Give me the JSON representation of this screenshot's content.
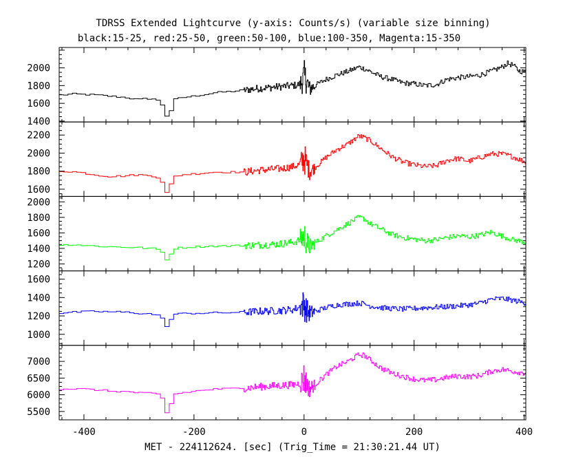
{
  "title": "TDRSS Extended Lightcurve (y-axis: Counts/s) (variable size binning)",
  "subtitle": "black:15-25, red:25-50, green:50-100, blue:100-350, Magenta:15-350",
  "xlabel": "MET - 224112624. [sec] (Trig_Time = 21:30:21.44 UT)",
  "chart_data": {
    "type": "line",
    "xlim": [
      -445,
      403
    ],
    "xticks": [
      -400,
      -200,
      0,
      200,
      400
    ],
    "trigger_x": 0,
    "series": [
      {
        "name": "black:15-25",
        "color": "#000000",
        "ylim": [
          1390,
          2230
        ],
        "yticks": [
          1400,
          1600,
          1800,
          2000
        ],
        "x": [
          -445,
          -420,
          -400,
          -380,
          -350,
          -320,
          -300,
          -290,
          -275,
          -260,
          -255,
          -250,
          -247,
          -243,
          -240,
          -235,
          -220,
          -200,
          -180,
          -160,
          -140,
          -120,
          -105,
          -95,
          -80,
          -60,
          -40,
          -20,
          -10,
          -5,
          0,
          5,
          10,
          20,
          40,
          60,
          80,
          100,
          110,
          120,
          140,
          160,
          180,
          200,
          220,
          240,
          260,
          280,
          300,
          320,
          340,
          360,
          370,
          380,
          390,
          403
        ],
        "values": [
          1690,
          1705,
          1700,
          1695,
          1680,
          1665,
          1640,
          1650,
          1655,
          1620,
          1560,
          1480,
          1420,
          1440,
          1560,
          1640,
          1665,
          1680,
          1700,
          1720,
          1730,
          1740,
          1750,
          1760,
          1770,
          1780,
          1790,
          1800,
          1810,
          1830,
          1900,
          1850,
          1760,
          1800,
          1870,
          1920,
          1960,
          2010,
          1990,
          1960,
          1900,
          1870,
          1830,
          1820,
          1800,
          1810,
          1870,
          1890,
          1900,
          1920,
          1960,
          2010,
          2050,
          2030,
          1970,
          1950
        ]
      },
      {
        "name": "red:25-50",
        "color": "#ff0000",
        "ylim": [
          1520,
          2345
        ],
        "yticks": [
          1600,
          1800,
          2000,
          2200
        ],
        "x": [
          -445,
          -420,
          -400,
          -380,
          -350,
          -320,
          -300,
          -290,
          -275,
          -260,
          -255,
          -250,
          -247,
          -243,
          -240,
          -235,
          -220,
          -200,
          -180,
          -160,
          -140,
          -120,
          -105,
          -95,
          -80,
          -60,
          -40,
          -20,
          -10,
          -5,
          0,
          5,
          10,
          20,
          40,
          60,
          80,
          100,
          110,
          120,
          140,
          160,
          180,
          200,
          220,
          240,
          260,
          280,
          300,
          320,
          340,
          360,
          380,
          403
        ],
        "values": [
          1800,
          1795,
          1780,
          1760,
          1740,
          1750,
          1760,
          1755,
          1750,
          1720,
          1660,
          1580,
          1520,
          1560,
          1700,
          1740,
          1760,
          1770,
          1780,
          1790,
          1790,
          1790,
          1790,
          1800,
          1810,
          1820,
          1830,
          1850,
          1870,
          1900,
          1950,
          1880,
          1800,
          1840,
          1950,
          2040,
          2100,
          2190,
          2170,
          2140,
          2050,
          1960,
          1900,
          1870,
          1850,
          1860,
          1920,
          1940,
          1910,
          1950,
          1990,
          1990,
          1960,
          1900
        ]
      },
      {
        "name": "green:50-100",
        "color": "#00ff00",
        "ylim": [
          1110,
          2070
        ],
        "yticks": [
          1200,
          1400,
          1600,
          1800,
          2000
        ],
        "x": [
          -445,
          -420,
          -400,
          -380,
          -350,
          -320,
          -300,
          -290,
          -275,
          -260,
          -255,
          -250,
          -247,
          -243,
          -240,
          -235,
          -220,
          -200,
          -180,
          -160,
          -140,
          -120,
          -105,
          -95,
          -80,
          -60,
          -40,
          -20,
          -10,
          -5,
          0,
          5,
          10,
          20,
          40,
          60,
          80,
          100,
          110,
          120,
          140,
          160,
          180,
          200,
          220,
          240,
          260,
          280,
          300,
          320,
          340,
          360,
          380,
          403
        ],
        "values": [
          1440,
          1450,
          1440,
          1430,
          1420,
          1415,
          1410,
          1405,
          1400,
          1380,
          1330,
          1270,
          1240,
          1260,
          1360,
          1400,
          1410,
          1420,
          1425,
          1430,
          1430,
          1435,
          1440,
          1440,
          1445,
          1450,
          1460,
          1480,
          1500,
          1530,
          1560,
          1480,
          1420,
          1470,
          1560,
          1640,
          1720,
          1800,
          1780,
          1720,
          1650,
          1580,
          1540,
          1520,
          1500,
          1510,
          1540,
          1560,
          1550,
          1570,
          1610,
          1560,
          1510,
          1480
        ]
      },
      {
        "name": "blue:100-350",
        "color": "#0000ff",
        "ylim": [
          880,
          1690
        ],
        "yticks": [
          1000,
          1200,
          1400,
          1600
        ],
        "x": [
          -445,
          -420,
          -400,
          -380,
          -350,
          -320,
          -300,
          -290,
          -275,
          -260,
          -255,
          -250,
          -247,
          -243,
          -240,
          -235,
          -220,
          -200,
          -180,
          -160,
          -140,
          -120,
          -105,
          -95,
          -80,
          -60,
          -40,
          -20,
          -10,
          -5,
          0,
          5,
          10,
          20,
          40,
          60,
          80,
          100,
          110,
          120,
          140,
          160,
          180,
          200,
          220,
          240,
          260,
          280,
          300,
          320,
          340,
          360,
          380,
          403
        ],
        "values": [
          1230,
          1240,
          1245,
          1250,
          1245,
          1240,
          1230,
          1225,
          1220,
          1200,
          1150,
          1100,
          1080,
          1100,
          1190,
          1220,
          1225,
          1230,
          1230,
          1235,
          1235,
          1240,
          1240,
          1245,
          1250,
          1255,
          1260,
          1270,
          1290,
          1310,
          1330,
          1260,
          1230,
          1250,
          1290,
          1320,
          1330,
          1340,
          1330,
          1310,
          1290,
          1280,
          1275,
          1280,
          1290,
          1295,
          1300,
          1310,
          1320,
          1340,
          1380,
          1390,
          1370,
          1340
        ]
      },
      {
        "name": "Magenta:15-350",
        "color": "#ff00ff",
        "ylim": [
          5250,
          7480
        ],
        "yticks": [
          5500,
          6000,
          6500,
          7000
        ],
        "x": [
          -445,
          -420,
          -400,
          -380,
          -350,
          -320,
          -300,
          -290,
          -275,
          -260,
          -255,
          -250,
          -247,
          -243,
          -240,
          -235,
          -220,
          -200,
          -180,
          -160,
          -140,
          -120,
          -105,
          -95,
          -80,
          -60,
          -40,
          -20,
          -10,
          -5,
          0,
          5,
          10,
          20,
          40,
          60,
          80,
          100,
          110,
          120,
          140,
          160,
          180,
          200,
          220,
          240,
          260,
          280,
          300,
          320,
          340,
          360,
          380,
          403
        ],
        "values": [
          6170,
          6180,
          6170,
          6150,
          6110,
          6090,
          6060,
          6050,
          6040,
          6000,
          5820,
          5540,
          5300,
          5420,
          5900,
          6020,
          6060,
          6100,
          6140,
          6170,
          6180,
          6190,
          6200,
          6220,
          6240,
          6260,
          6280,
          6300,
          6330,
          6380,
          6500,
          6320,
          6180,
          6300,
          6600,
          6850,
          7000,
          7200,
          7180,
          7050,
          6800,
          6650,
          6550,
          6470,
          6430,
          6450,
          6520,
          6560,
          6540,
          6580,
          6700,
          6760,
          6700,
          6650
        ]
      }
    ]
  }
}
